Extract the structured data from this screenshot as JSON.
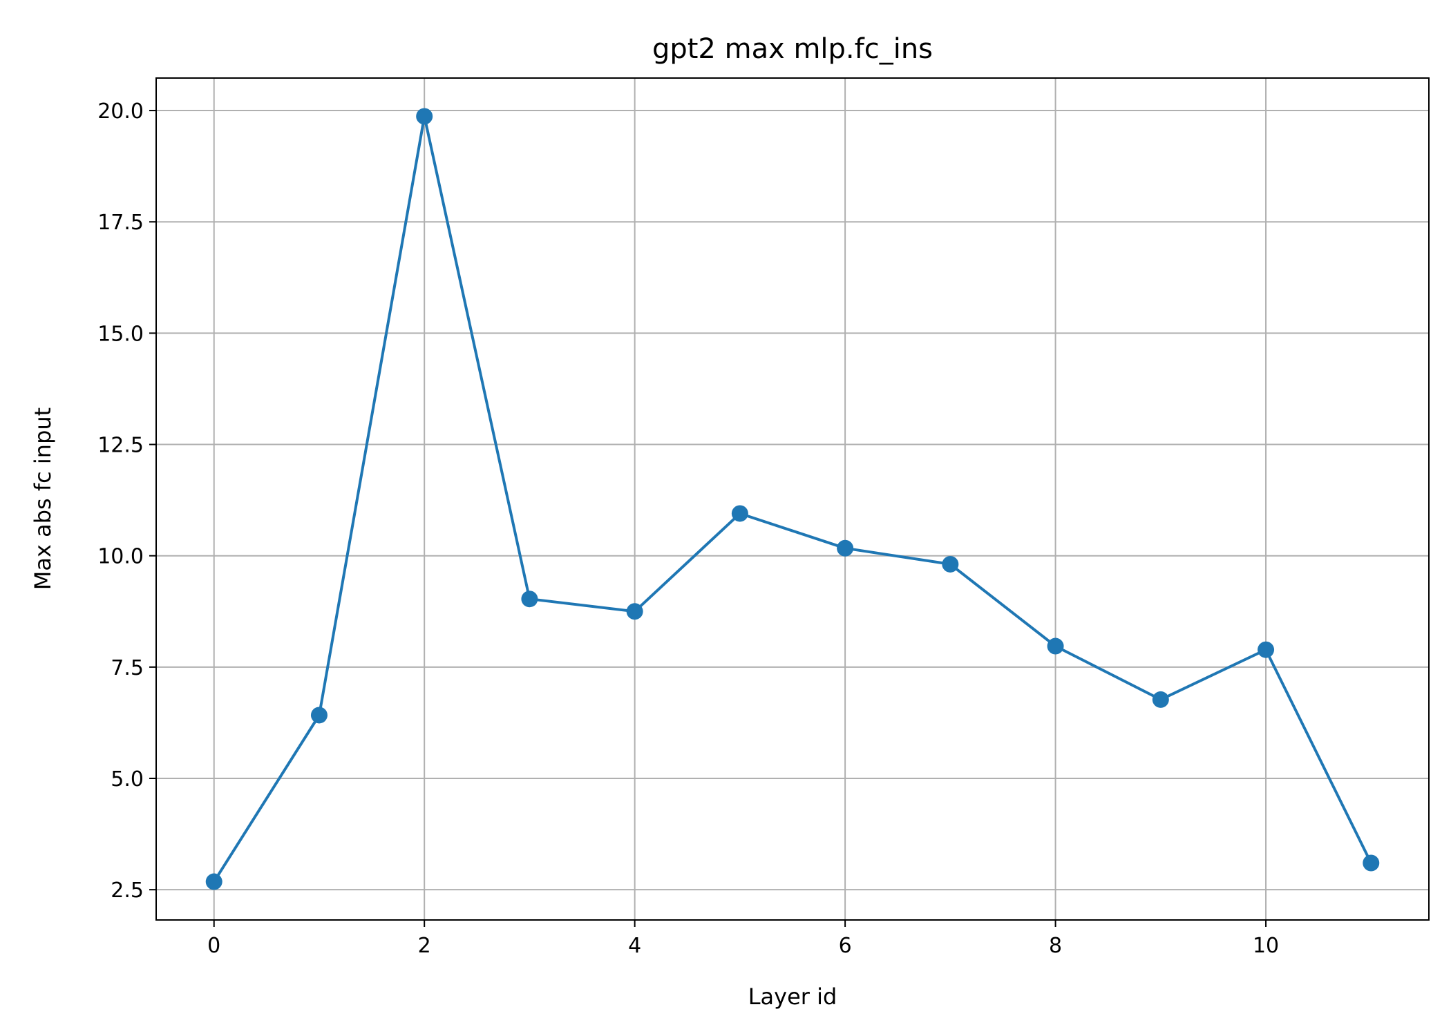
{
  "chart_data": {
    "type": "line",
    "title": "gpt2 max mlp.fc_ins",
    "xlabel": "Layer id",
    "ylabel": "Max abs fc input",
    "x": [
      0,
      1,
      2,
      3,
      4,
      5,
      6,
      7,
      8,
      9,
      10,
      11
    ],
    "series": [
      {
        "values": [
          2.68,
          6.42,
          19.87,
          9.03,
          8.75,
          10.95,
          10.17,
          9.81,
          7.97,
          6.77,
          7.89,
          3.1
        ],
        "color": "#1f77b4",
        "marker": "circle"
      }
    ],
    "xlim": [
      -0.55,
      11.55
    ],
    "ylim": [
      1.82,
      20.73
    ],
    "xticks": [
      0,
      2,
      4,
      6,
      8,
      10
    ],
    "xtick_labels": [
      "0",
      "2",
      "4",
      "6",
      "8",
      "10"
    ],
    "yticks": [
      2.5,
      5.0,
      7.5,
      10.0,
      12.5,
      15.0,
      17.5,
      20.0
    ],
    "ytick_labels": [
      "2.5",
      "5.0",
      "7.5",
      "10.0",
      "12.5",
      "15.0",
      "17.5",
      "20.0"
    ],
    "grid": true,
    "grid_color": "#b0b0b0"
  }
}
